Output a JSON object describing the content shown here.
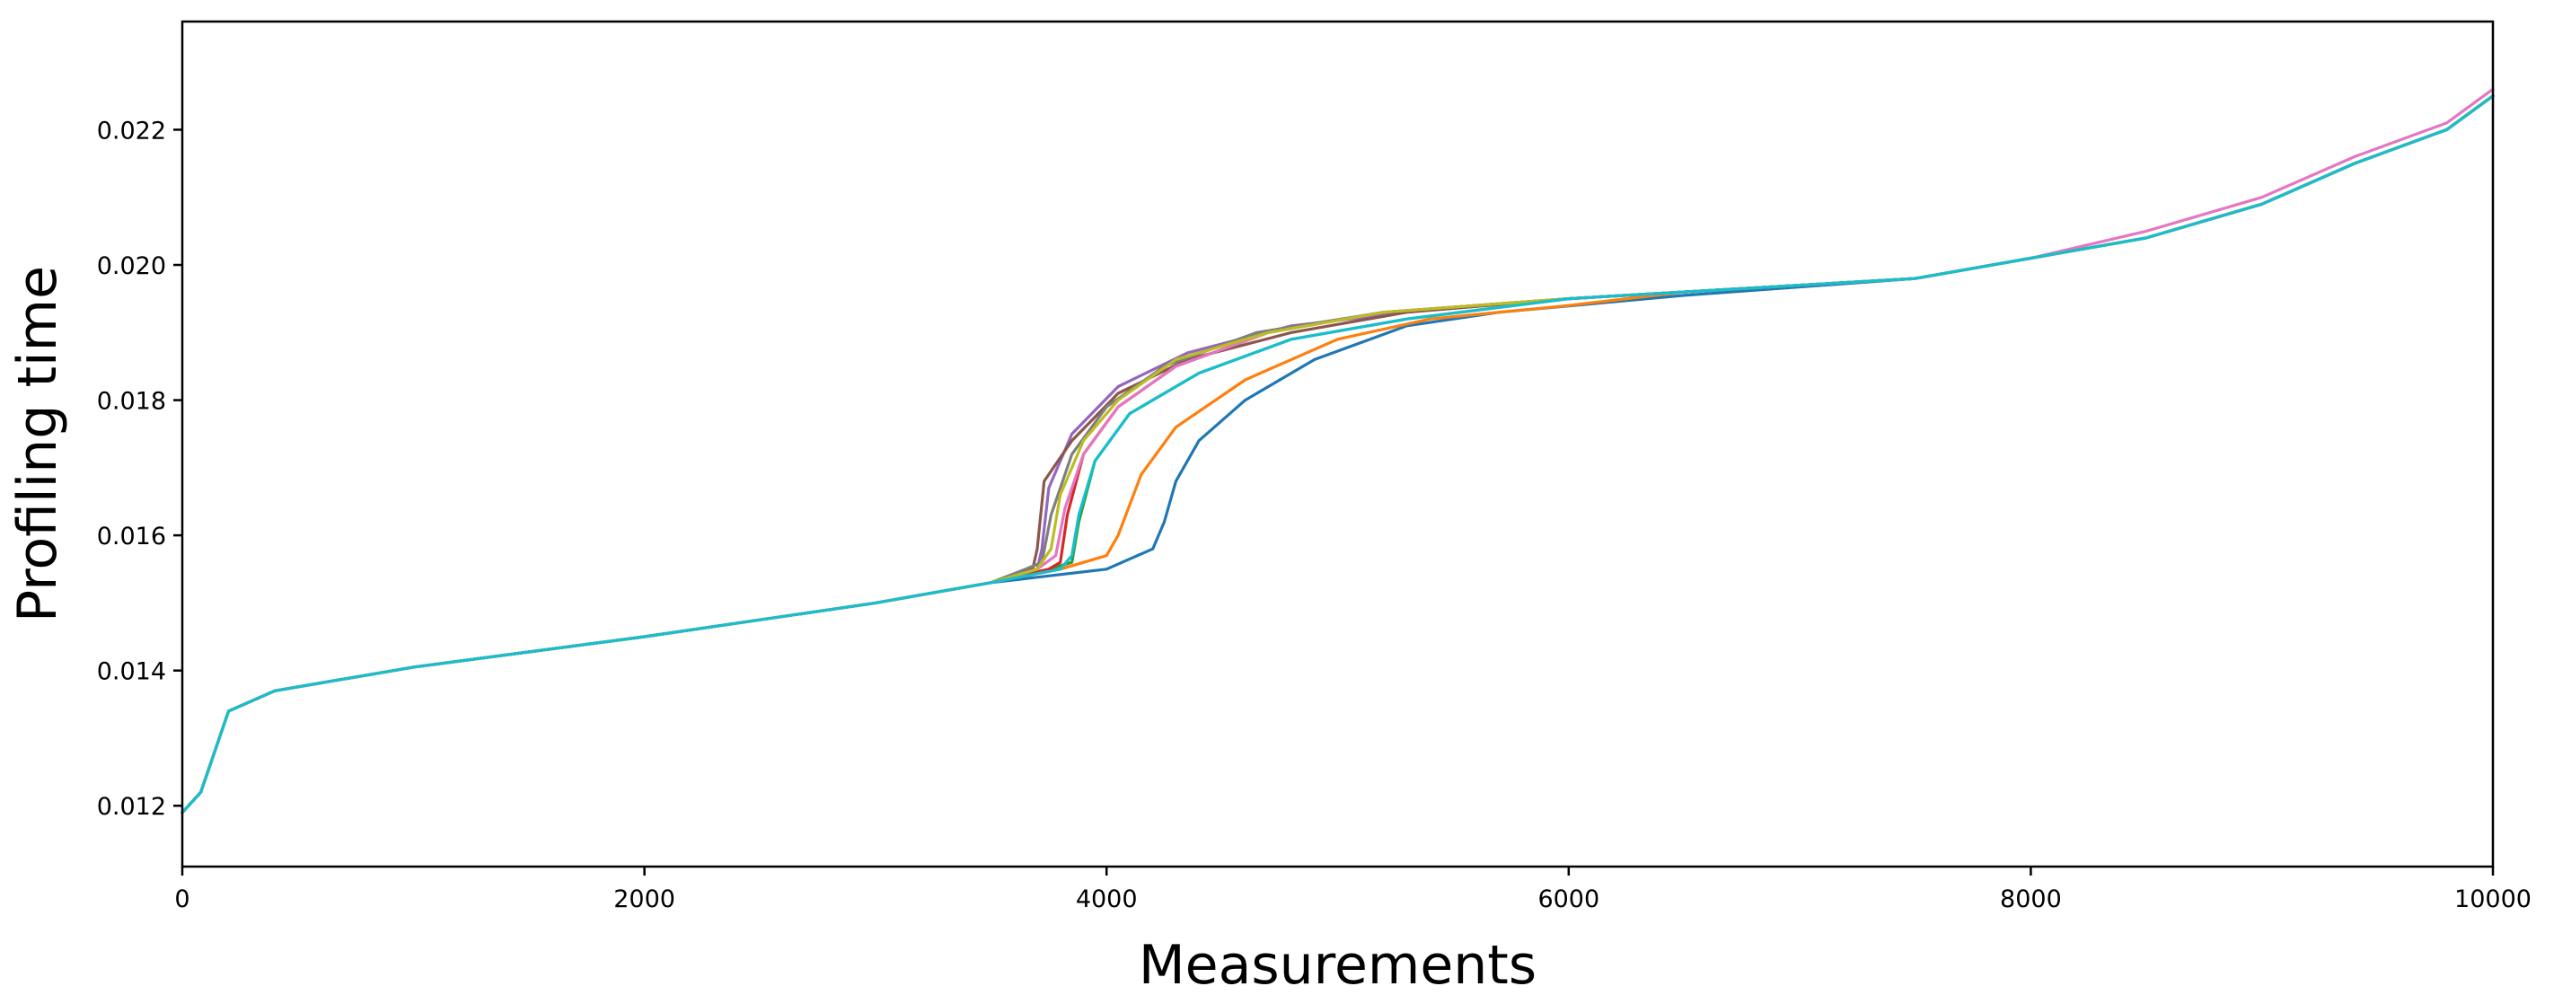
{
  "chart_data": {
    "type": "line",
    "title": "",
    "xlabel": "Measurements",
    "ylabel": "Profiling time",
    "xlim": [
      0,
      10000
    ],
    "ylim": [
      0.0111,
      0.0236
    ],
    "xticks": [
      0,
      2000,
      4000,
      6000,
      8000,
      10000
    ],
    "xtick_labels": [
      "0",
      "2000",
      "4000",
      "6000",
      "8000",
      "10000"
    ],
    "yticks": [
      0.012,
      0.014,
      0.016,
      0.018,
      0.02,
      0.022
    ],
    "ytick_labels": [
      "0.012",
      "0.014",
      "0.016",
      "0.018",
      "0.020",
      "0.022"
    ],
    "grid": false,
    "legend": "none",
    "series": [
      {
        "color": "#1f77b4",
        "values": [
          [
            0,
            0.0119
          ],
          [
            80,
            0.0122
          ],
          [
            200,
            0.0134
          ],
          [
            400,
            0.0137
          ],
          [
            1000,
            0.01405
          ],
          [
            2000,
            0.0145
          ],
          [
            3000,
            0.015
          ],
          [
            3500,
            0.0153
          ],
          [
            4000,
            0.0155
          ],
          [
            4200,
            0.0158
          ],
          [
            4250,
            0.0162
          ],
          [
            4300,
            0.0168
          ],
          [
            4400,
            0.0174
          ],
          [
            4600,
            0.018
          ],
          [
            4900,
            0.0186
          ],
          [
            5300,
            0.0191
          ],
          [
            5700,
            0.0193
          ],
          [
            6500,
            0.01955
          ],
          [
            7500,
            0.0198
          ],
          [
            8000,
            0.0201
          ],
          [
            8500,
            0.0204
          ],
          [
            9000,
            0.0209
          ],
          [
            9400,
            0.0215
          ],
          [
            9800,
            0.022
          ],
          [
            10000,
            0.0225
          ]
        ]
      },
      {
        "color": "#ff7f0e",
        "values": [
          [
            0,
            0.0119
          ],
          [
            80,
            0.0122
          ],
          [
            200,
            0.0134
          ],
          [
            400,
            0.0137
          ],
          [
            1000,
            0.01405
          ],
          [
            2000,
            0.0145
          ],
          [
            3000,
            0.015
          ],
          [
            3500,
            0.0153
          ],
          [
            3800,
            0.0155
          ],
          [
            4000,
            0.0157
          ],
          [
            4050,
            0.016
          ],
          [
            4150,
            0.0169
          ],
          [
            4300,
            0.0176
          ],
          [
            4600,
            0.0183
          ],
          [
            5000,
            0.0189
          ],
          [
            5400,
            0.0192
          ],
          [
            6000,
            0.0194
          ],
          [
            6500,
            0.0196
          ],
          [
            7500,
            0.0198
          ],
          [
            8000,
            0.0201
          ],
          [
            8500,
            0.0204
          ],
          [
            9000,
            0.0209
          ],
          [
            9400,
            0.0215
          ],
          [
            9800,
            0.022
          ],
          [
            10000,
            0.0225
          ]
        ]
      },
      {
        "color": "#2ca02c",
        "values": [
          [
            0,
            0.0119
          ],
          [
            80,
            0.0122
          ],
          [
            200,
            0.0134
          ],
          [
            400,
            0.0137
          ],
          [
            1000,
            0.01405
          ],
          [
            2000,
            0.0145
          ],
          [
            3000,
            0.015
          ],
          [
            3500,
            0.0153
          ],
          [
            3750,
            0.0155
          ],
          [
            3850,
            0.0156
          ],
          [
            3880,
            0.0162
          ],
          [
            3950,
            0.0171
          ],
          [
            4100,
            0.0178
          ],
          [
            4400,
            0.0184
          ],
          [
            4800,
            0.0189
          ],
          [
            5300,
            0.0192
          ],
          [
            6000,
            0.0195
          ],
          [
            6500,
            0.0196
          ],
          [
            7500,
            0.0198
          ],
          [
            8000,
            0.0201
          ],
          [
            8500,
            0.0204
          ],
          [
            9000,
            0.0209
          ],
          [
            9400,
            0.0215
          ],
          [
            9800,
            0.022
          ],
          [
            10000,
            0.0225
          ]
        ]
      },
      {
        "color": "#d62728",
        "values": [
          [
            0,
            0.0119
          ],
          [
            80,
            0.0122
          ],
          [
            200,
            0.0134
          ],
          [
            400,
            0.0137
          ],
          [
            1000,
            0.01405
          ],
          [
            2000,
            0.0145
          ],
          [
            3000,
            0.015
          ],
          [
            3500,
            0.0153
          ],
          [
            3750,
            0.0155
          ],
          [
            3800,
            0.0156
          ],
          [
            3830,
            0.0163
          ],
          [
            3900,
            0.0172
          ],
          [
            4050,
            0.0179
          ],
          [
            4300,
            0.0185
          ],
          [
            4700,
            0.019
          ],
          [
            5200,
            0.0193
          ],
          [
            6000,
            0.0195
          ],
          [
            6500,
            0.0196
          ],
          [
            7500,
            0.0198
          ],
          [
            8000,
            0.0201
          ],
          [
            8500,
            0.0204
          ],
          [
            9000,
            0.0209
          ],
          [
            9400,
            0.0215
          ],
          [
            9800,
            0.022
          ],
          [
            10000,
            0.0225
          ]
        ]
      },
      {
        "color": "#9467bd",
        "values": [
          [
            0,
            0.0119
          ],
          [
            80,
            0.0122
          ],
          [
            200,
            0.0134
          ],
          [
            400,
            0.0137
          ],
          [
            1000,
            0.01405
          ],
          [
            2000,
            0.0145
          ],
          [
            3000,
            0.015
          ],
          [
            3500,
            0.0153
          ],
          [
            3700,
            0.0155
          ],
          [
            3720,
            0.0158
          ],
          [
            3750,
            0.0167
          ],
          [
            3850,
            0.0175
          ],
          [
            4050,
            0.0182
          ],
          [
            4350,
            0.0187
          ],
          [
            4800,
            0.0191
          ],
          [
            5300,
            0.0193
          ],
          [
            6000,
            0.0195
          ],
          [
            6500,
            0.0196
          ],
          [
            7500,
            0.0198
          ],
          [
            8000,
            0.0201
          ],
          [
            8500,
            0.0204
          ],
          [
            9000,
            0.0209
          ],
          [
            9400,
            0.0215
          ],
          [
            9800,
            0.022
          ],
          [
            10000,
            0.0225
          ]
        ]
      },
      {
        "color": "#8c564b",
        "values": [
          [
            0,
            0.0119
          ],
          [
            80,
            0.0122
          ],
          [
            200,
            0.0134
          ],
          [
            400,
            0.0137
          ],
          [
            1000,
            0.01405
          ],
          [
            2000,
            0.0145
          ],
          [
            3000,
            0.015
          ],
          [
            3500,
            0.0153
          ],
          [
            3680,
            0.0155
          ],
          [
            3700,
            0.0158
          ],
          [
            3730,
            0.0168
          ],
          [
            3850,
            0.0174
          ],
          [
            4050,
            0.0181
          ],
          [
            4350,
            0.0186
          ],
          [
            4800,
            0.019
          ],
          [
            5300,
            0.0193
          ],
          [
            6000,
            0.0195
          ],
          [
            6500,
            0.0196
          ],
          [
            7500,
            0.0198
          ],
          [
            8000,
            0.0201
          ],
          [
            8500,
            0.0204
          ],
          [
            9000,
            0.0209
          ],
          [
            9400,
            0.0215
          ],
          [
            9800,
            0.022
          ],
          [
            10000,
            0.0225
          ]
        ]
      },
      {
        "color": "#e377c2",
        "values": [
          [
            0,
            0.0119
          ],
          [
            80,
            0.0122
          ],
          [
            200,
            0.0134
          ],
          [
            400,
            0.0137
          ],
          [
            1000,
            0.01405
          ],
          [
            2000,
            0.0145
          ],
          [
            3000,
            0.015
          ],
          [
            3500,
            0.0153
          ],
          [
            3700,
            0.0155
          ],
          [
            3780,
            0.0157
          ],
          [
            3820,
            0.0164
          ],
          [
            3900,
            0.0172
          ],
          [
            4050,
            0.0179
          ],
          [
            4300,
            0.0185
          ],
          [
            4700,
            0.019
          ],
          [
            5200,
            0.0193
          ],
          [
            6000,
            0.0195
          ],
          [
            6500,
            0.0196
          ],
          [
            7500,
            0.0198
          ],
          [
            8000,
            0.0201
          ],
          [
            8500,
            0.0205
          ],
          [
            9000,
            0.021
          ],
          [
            9400,
            0.0216
          ],
          [
            9800,
            0.0221
          ],
          [
            10000,
            0.0226
          ]
        ]
      },
      {
        "color": "#7f7f7f",
        "values": [
          [
            0,
            0.0119
          ],
          [
            80,
            0.0122
          ],
          [
            200,
            0.0134
          ],
          [
            400,
            0.0137
          ],
          [
            1000,
            0.01405
          ],
          [
            2000,
            0.0145
          ],
          [
            3000,
            0.015
          ],
          [
            3500,
            0.0153
          ],
          [
            3650,
            0.0155
          ],
          [
            3720,
            0.0156
          ],
          [
            3760,
            0.0163
          ],
          [
            3850,
            0.0172
          ],
          [
            4000,
            0.0179
          ],
          [
            4250,
            0.0185
          ],
          [
            4650,
            0.019
          ],
          [
            5200,
            0.0193
          ],
          [
            6000,
            0.0195
          ],
          [
            6500,
            0.0196
          ],
          [
            7500,
            0.0198
          ],
          [
            8000,
            0.0201
          ],
          [
            8500,
            0.0204
          ],
          [
            9000,
            0.0209
          ],
          [
            9400,
            0.0215
          ],
          [
            9800,
            0.022
          ],
          [
            10000,
            0.0225
          ]
        ]
      },
      {
        "color": "#bcbd22",
        "values": [
          [
            0,
            0.0119
          ],
          [
            80,
            0.0122
          ],
          [
            200,
            0.0134
          ],
          [
            400,
            0.0137
          ],
          [
            1000,
            0.01405
          ],
          [
            2000,
            0.0145
          ],
          [
            3000,
            0.015
          ],
          [
            3500,
            0.0153
          ],
          [
            3700,
            0.0155
          ],
          [
            3760,
            0.0158
          ],
          [
            3800,
            0.0166
          ],
          [
            3900,
            0.0174
          ],
          [
            4050,
            0.018
          ],
          [
            4300,
            0.0186
          ],
          [
            4700,
            0.019
          ],
          [
            5200,
            0.0193
          ],
          [
            6000,
            0.0195
          ],
          [
            6500,
            0.0196
          ],
          [
            7500,
            0.0198
          ],
          [
            8000,
            0.0201
          ],
          [
            8500,
            0.0204
          ],
          [
            9000,
            0.0209
          ],
          [
            9400,
            0.0215
          ],
          [
            9800,
            0.022
          ],
          [
            10000,
            0.0225
          ]
        ]
      },
      {
        "color": "#17becf",
        "values": [
          [
            0,
            0.0119
          ],
          [
            80,
            0.0122
          ],
          [
            200,
            0.0134
          ],
          [
            400,
            0.0137
          ],
          [
            1000,
            0.01405
          ],
          [
            2000,
            0.0145
          ],
          [
            3000,
            0.015
          ],
          [
            3500,
            0.0153
          ],
          [
            3800,
            0.0155
          ],
          [
            3850,
            0.0157
          ],
          [
            3880,
            0.0163
          ],
          [
            3950,
            0.0171
          ],
          [
            4100,
            0.0178
          ],
          [
            4400,
            0.0184
          ],
          [
            4800,
            0.0189
          ],
          [
            5300,
            0.0192
          ],
          [
            6000,
            0.0195
          ],
          [
            6500,
            0.0196
          ],
          [
            7500,
            0.0198
          ],
          [
            8000,
            0.0201
          ],
          [
            8500,
            0.0204
          ],
          [
            9000,
            0.0209
          ],
          [
            9400,
            0.0215
          ],
          [
            9800,
            0.022
          ],
          [
            10000,
            0.0225
          ]
        ]
      }
    ]
  }
}
